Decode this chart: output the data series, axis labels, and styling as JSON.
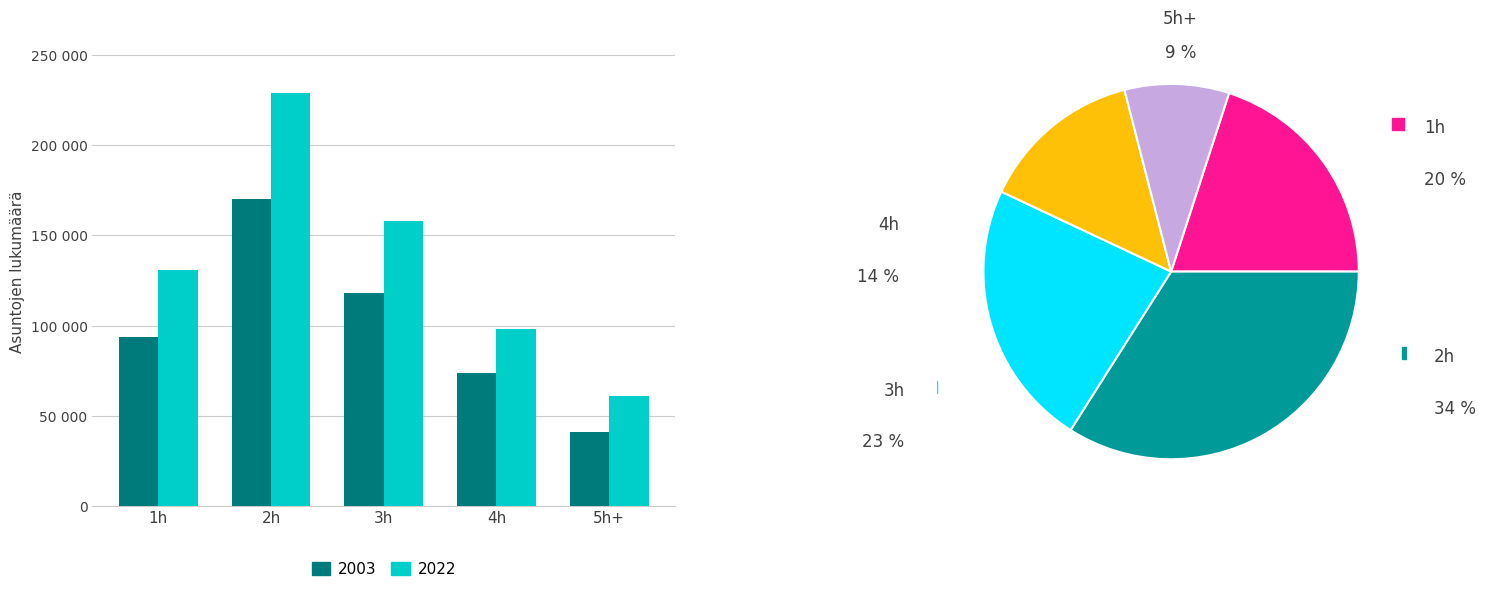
{
  "bar_categories": [
    "1h",
    "2h",
    "3h",
    "4h",
    "5h+"
  ],
  "bar_2003": [
    94000,
    170000,
    118000,
    74000,
    41000
  ],
  "bar_2022": [
    131000,
    229000,
    158000,
    98000,
    61000
  ],
  "bar_color_2003": "#007B7B",
  "bar_color_2022": "#00CEC9",
  "ylabel": "Asuntojen lukumäärä",
  "legend_2003": "2003",
  "legend_2022": "2022",
  "ylim": [
    0,
    260000
  ],
  "yticks": [
    0,
    50000,
    100000,
    150000,
    200000,
    250000
  ],
  "ytick_labels": [
    "0",
    "50 000",
    "100 000",
    "150 000",
    "200 000",
    "250 000"
  ],
  "pie_values": [
    20,
    34,
    23,
    14,
    9
  ],
  "pie_colors": [
    "#FF1493",
    "#009B99",
    "#00E5FF",
    "#FFC107",
    "#C8A8E0"
  ],
  "pie_startangle": 72,
  "pie_label_info": [
    {
      "label": "1h",
      "pct": "20 %",
      "color": "#FF1493"
    },
    {
      "label": "2h",
      "pct": "34 %",
      "color": "#009B99"
    },
    {
      "label": "3h",
      "pct": "23 %",
      "color": "#00E5FF"
    },
    {
      "label": "4h",
      "pct": "14 %",
      "color": "#FFC107"
    },
    {
      "label": "5h+",
      "pct": "9 %",
      "color": "#C8A8E0"
    }
  ],
  "background_color": "#FFFFFF",
  "grid_color": "#CCCCCC",
  "text_color": "#404040"
}
